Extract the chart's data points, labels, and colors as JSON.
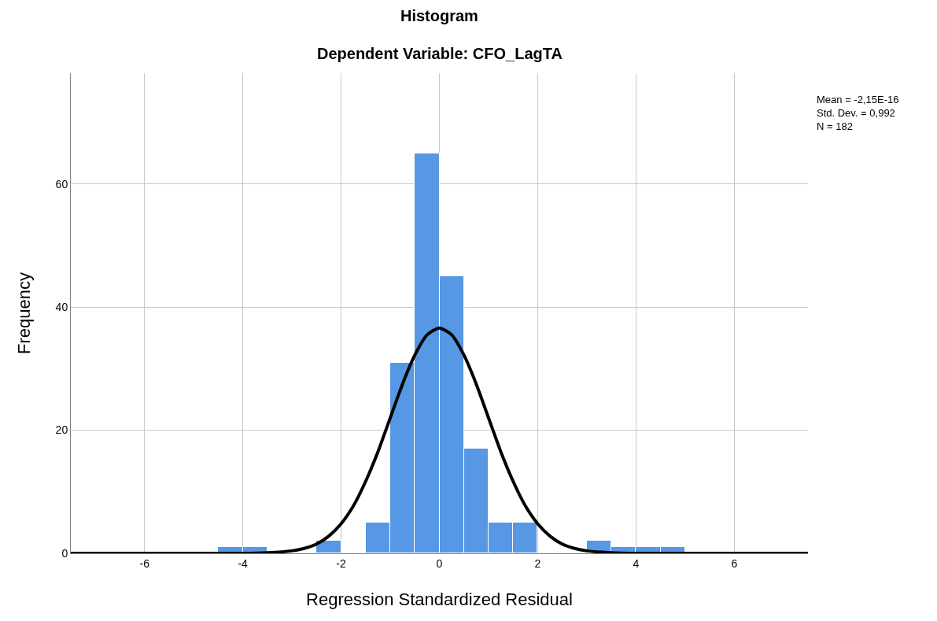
{
  "chart_data": {
    "type": "histogram",
    "title": "Histogram",
    "subtitle": "Dependent Variable: CFO_LagTA",
    "xlabel": "Regression Standardized Residual",
    "ylabel": "Frequency",
    "bins": [
      -4.5,
      -4,
      -3.5,
      -3,
      -2.5,
      -2,
      -1.5,
      -1,
      -0.5,
      0,
      0.5,
      1,
      1.5,
      2,
      2.5,
      3,
      3.5,
      4,
      4.5,
      5
    ],
    "series": [
      {
        "color": "#5698e4",
        "values": [
          1,
          1,
          0,
          0,
          2,
          0,
          5,
          31,
          65,
          45,
          17,
          5,
          5,
          0,
          0,
          2,
          1,
          1,
          1
        ]
      },
      {
        "type": "line",
        "color": "#000000",
        "x": [
          -7.5,
          -4,
          -3.5,
          -3,
          -2.75,
          -2.5,
          -2.25,
          -2,
          -1.75,
          -1.5,
          -1.25,
          -1,
          -0.75,
          -0.5,
          -0.25,
          0,
          0.25,
          0.5,
          0.75,
          1,
          1.25,
          1.5,
          1.75,
          2,
          2.25,
          2.5,
          2.75,
          3,
          3.5,
          4,
          7.5
        ],
        "values": [
          0,
          0,
          0.1,
          0.4,
          0.8,
          1.5,
          2.8,
          4.8,
          7.7,
          11.7,
          16.5,
          22,
          27.5,
          32.2,
          35.5,
          36.6,
          35.5,
          32.2,
          27.5,
          22,
          16.5,
          11.7,
          7.7,
          4.8,
          2.8,
          1.5,
          0.8,
          0.4,
          0.1,
          0,
          0
        ]
      }
    ],
    "xlim": [
      -7.5,
      7.5
    ],
    "xticks": [
      -6,
      -4,
      -2,
      0,
      2,
      4,
      6
    ],
    "ylim": [
      0,
      78
    ],
    "yticks": [
      0,
      20,
      40,
      60
    ],
    "grid": true,
    "line_style": "solid",
    "marker": "none",
    "annotations": [
      "Mean = -2,15E-16",
      "Std. Dev. = 0,992",
      "N = 182"
    ]
  }
}
